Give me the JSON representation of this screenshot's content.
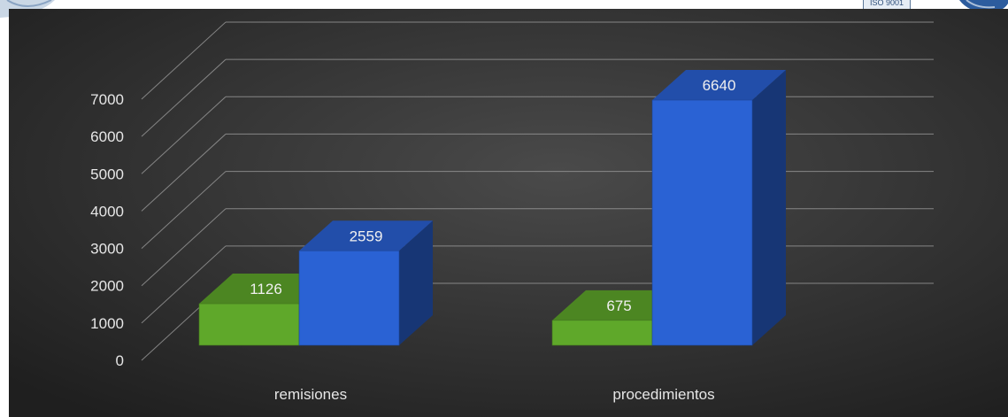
{
  "chart_data": {
    "type": "bar",
    "style": "3d-clustered-column",
    "categories": [
      "remisiones",
      "procedimientos"
    ],
    "series": [
      {
        "values": [
          1126,
          675
        ],
        "color": "#5fa82a"
      },
      {
        "values": [
          2559,
          6640
        ],
        "color": "#2a62d4"
      }
    ],
    "yticks": [
      "0",
      "1000",
      "2000",
      "3000",
      "4000",
      "5000",
      "6000",
      "7000"
    ],
    "ylim": [
      0,
      7000
    ],
    "grid": true,
    "background": "#2e2e2e"
  },
  "header": {
    "badge_text": "ISO 9001"
  }
}
